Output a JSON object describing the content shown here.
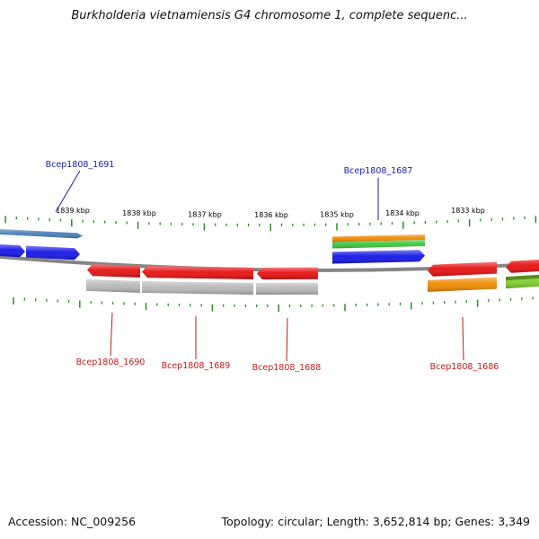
{
  "title": "Burkholderia vietnamiensis G4 chromosome 1, complete sequenc...",
  "footer": {
    "accession": "Accession: NC_009256",
    "topology": "Topology: circular; Length: 3,652,814 bp; Genes: 3,349"
  },
  "colors": {
    "blue_gene": "#1515e8",
    "steel_blue_gene": "#4a7eb8",
    "red_gene": "#e81010",
    "gray_gene": "#b8b8b8",
    "orange_gene": "#f08a00",
    "green_gene": "#3cc83c",
    "lime_gene": "#80d030",
    "olive_gene": "#5a8a20",
    "backbone": "#858585",
    "tick": "#2b8a2b",
    "label_blue": "#1a1ab8",
    "label_red": "#c81818"
  },
  "scale_labels": [
    "1839 kbp",
    "1838 kbp",
    "1837 kbp",
    "1836 kbp",
    "1835 kbp",
    "1834 kbp",
    "1833 kbp"
  ],
  "gene_labels": [
    "Bcep1808_1691",
    "Bcep1808_1687",
    "Bcep1808_1690",
    "Bcep1808_1689",
    "Bcep1808_1688",
    "Bcep1808_1686"
  ]
}
